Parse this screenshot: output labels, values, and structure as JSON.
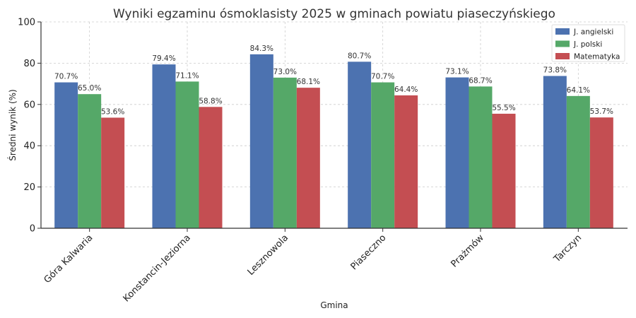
{
  "chart_data": {
    "type": "bar",
    "title": "Wyniki egzaminu ósmoklasisty 2025 w gminach powiatu piaseczyńskiego",
    "xlabel": "Gmina",
    "ylabel": "Średni wynik (%)",
    "ylim": [
      0,
      100
    ],
    "yticks": [
      0,
      20,
      40,
      60,
      80,
      100
    ],
    "grid": true,
    "legend_position": "top-right",
    "categories": [
      "Góra Kalwaria",
      "Konstancin-Jeziorna",
      "Lesznowola",
      "Piaseczno",
      "Prażmów",
      "Tarczyn"
    ],
    "series": [
      {
        "name": "J. angielski",
        "color": "#4c72b0",
        "values": [
          70.7,
          79.4,
          84.3,
          80.7,
          73.1,
          73.8
        ],
        "labels": [
          "70.7%",
          "79.4%",
          "84.3%",
          "80.7%",
          "73.1%",
          "73.8%"
        ]
      },
      {
        "name": "J. polski",
        "color": "#55a868",
        "values": [
          65.0,
          71.1,
          73.0,
          70.7,
          68.7,
          64.1
        ],
        "labels": [
          "65.0%",
          "71.1%",
          "73.0%",
          "70.7%",
          "68.7%",
          "64.1%"
        ]
      },
      {
        "name": "Matematyka",
        "color": "#c44e52",
        "values": [
          53.6,
          58.8,
          68.1,
          64.4,
          55.5,
          53.7
        ],
        "labels": [
          "53.6%",
          "58.8%",
          "68.1%",
          "64.4%",
          "55.5%",
          "53.7%"
        ]
      }
    ]
  }
}
